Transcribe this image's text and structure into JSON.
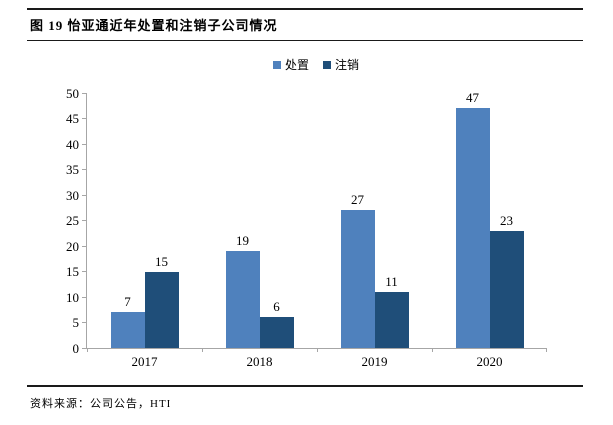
{
  "page": {
    "title": "图 19 怡亚通近年处置和注销子公司情况",
    "source_note": "资料来源：公司公告，HTI"
  },
  "colors": {
    "series_disposal": "#4F81BD",
    "series_deregister": "#1F4E79",
    "axis": "#A6A6A6",
    "rule": "#1A1A1A",
    "text": "#000000"
  },
  "chart_data": {
    "type": "bar",
    "title": "图 19 怡亚通近年处置和注销子公司情况",
    "categories": [
      "2017",
      "2018",
      "2019",
      "2020"
    ],
    "series": [
      {
        "name": "处置",
        "color": "#4F81BD",
        "values": [
          7,
          19,
          27,
          47
        ]
      },
      {
        "name": "注销",
        "color": "#1F4E79",
        "values": [
          15,
          6,
          11,
          23
        ]
      }
    ],
    "xlabel": "",
    "ylabel": "",
    "ylim": [
      0,
      50
    ],
    "ytick_step": 5,
    "grid": false,
    "legend_position": "top-center",
    "value_labels": true
  }
}
